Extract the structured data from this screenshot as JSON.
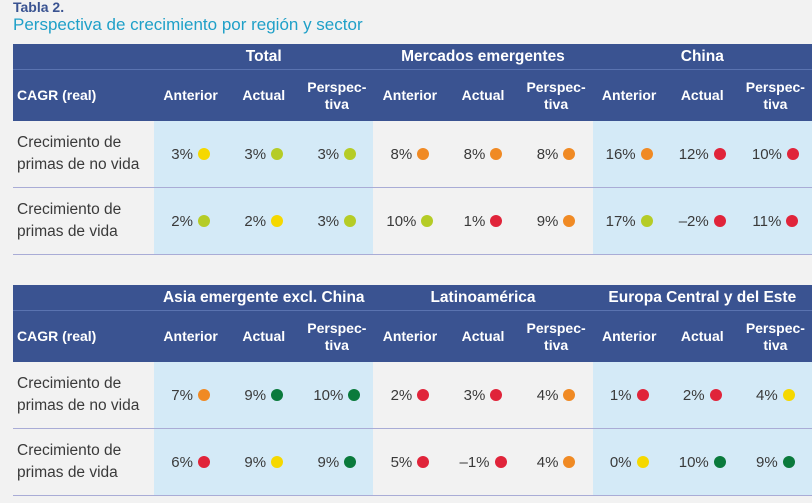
{
  "table_label": "Tabla 2.",
  "subtitle": "Perspectiva de crecimiento por región y sector",
  "colors": {
    "yellow": "#f5d800",
    "lime": "#b5cc26",
    "orange": "#f08a24",
    "red": "#e0243a",
    "green": "#0a7a3c",
    "header": "#3a5391",
    "shade": "#d4eaf7"
  },
  "row_header": "CAGR (real)",
  "sub_headers": [
    "Anterior",
    "Actual",
    "Perspec-\ntiva"
  ],
  "tables": [
    {
      "groups": [
        "Total",
        "Mercados emergentes",
        "China"
      ],
      "rows": [
        {
          "label": "Crecimiento de primas de no vida",
          "cells": [
            [
              "3%",
              "yellow"
            ],
            [
              "3%",
              "lime"
            ],
            [
              "3%",
              "lime"
            ],
            [
              "8%",
              "orange"
            ],
            [
              "8%",
              "orange"
            ],
            [
              "8%",
              "orange"
            ],
            [
              "16%",
              "orange"
            ],
            [
              "12%",
              "red"
            ],
            [
              "10%",
              "red"
            ]
          ]
        },
        {
          "label": "Crecimiento de primas de vida",
          "cells": [
            [
              "2%",
              "lime"
            ],
            [
              "2%",
              "yellow"
            ],
            [
              "3%",
              "lime"
            ],
            [
              "10%",
              "lime"
            ],
            [
              "1%",
              "red"
            ],
            [
              "9%",
              "orange"
            ],
            [
              "17%",
              "lime"
            ],
            [
              "–2%",
              "red"
            ],
            [
              "11%",
              "red"
            ]
          ]
        }
      ]
    },
    {
      "groups": [
        "Asia emergente excl. China",
        "Latinoamérica",
        "Europa Central y del Este"
      ],
      "rows": [
        {
          "label": "Crecimiento de primas de no vida",
          "cells": [
            [
              "7%",
              "orange"
            ],
            [
              "9%",
              "green"
            ],
            [
              "10%",
              "green"
            ],
            [
              "2%",
              "red"
            ],
            [
              "3%",
              "red"
            ],
            [
              "4%",
              "orange"
            ],
            [
              "1%",
              "red"
            ],
            [
              "2%",
              "red"
            ],
            [
              "4%",
              "yellow"
            ]
          ]
        },
        {
          "label": "Crecimiento de primas de vida",
          "cells": [
            [
              "6%",
              "red"
            ],
            [
              "9%",
              "yellow"
            ],
            [
              "9%",
              "green"
            ],
            [
              "5%",
              "red"
            ],
            [
              "–1%",
              "red"
            ],
            [
              "4%",
              "orange"
            ],
            [
              "0%",
              "yellow"
            ],
            [
              "10%",
              "green"
            ],
            [
              "9%",
              "green"
            ]
          ]
        }
      ]
    }
  ]
}
